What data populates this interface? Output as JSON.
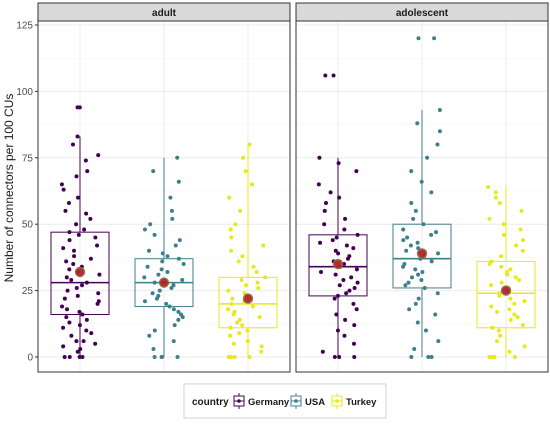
{
  "chart_data": {
    "type": "box",
    "ylabel": "Number of connectors per 100 CUs",
    "ylim": [
      0,
      125
    ],
    "yticks": [
      0,
      25,
      50,
      75,
      100,
      125
    ],
    "grid": true,
    "facets": [
      {
        "label": "adult",
        "groups": [
          {
            "country": "Germany",
            "min": 0,
            "q1": 16,
            "median": 28,
            "q3": 47,
            "max": 83,
            "mean": 32,
            "outliers": [
              94
            ],
            "points": [
              0,
              0,
              0,
              0,
              2,
              3,
              4,
              5,
              6,
              6,
              8,
              9,
              10,
              11,
              12,
              13,
              14,
              15,
              16,
              17,
              18,
              19,
              20,
              21,
              22,
              23,
              24,
              25,
              26,
              27,
              28,
              29,
              30,
              31,
              32,
              33,
              34,
              35,
              36,
              37,
              38,
              40,
              41,
              42,
              44,
              45,
              46,
              47,
              48,
              50,
              52,
              54,
              55,
              58,
              60,
              63,
              65,
              68,
              70,
              74,
              76,
              80,
              83,
              94,
              94
            ]
          },
          {
            "country": "USA",
            "min": 0,
            "q1": 19,
            "median": 28,
            "q3": 37,
            "max": 75,
            "mean": 28,
            "outliers": [],
            "points": [
              0,
              0,
              0,
              0,
              3,
              6,
              8,
              10,
              12,
              14,
              15,
              16,
              17,
              18,
              19,
              20,
              21,
              22,
              23,
              24,
              25,
              26,
              27,
              28,
              29,
              30,
              31,
              32,
              33,
              34,
              35,
              36,
              37,
              38,
              39,
              40,
              42,
              44,
              46,
              48,
              50,
              52,
              55,
              60,
              66,
              70,
              75
            ]
          },
          {
            "country": "Turkey",
            "min": 0,
            "q1": 11,
            "median": 20,
            "q3": 30,
            "max": 80,
            "mean": 22,
            "outliers": [],
            "points": [
              0,
              0,
              0,
              0,
              0,
              2,
              4,
              5,
              6,
              8,
              9,
              10,
              11,
              12,
              13,
              14,
              15,
              16,
              17,
              18,
              19,
              20,
              21,
              22,
              23,
              24,
              25,
              26,
              27,
              28,
              29,
              30,
              32,
              34,
              36,
              38,
              40,
              42,
              45,
              48,
              50,
              55,
              60,
              65,
              70,
              75,
              80
            ]
          }
        ]
      },
      {
        "label": "adolescent",
        "groups": [
          {
            "country": "Germany",
            "min": 0,
            "q1": 23,
            "median": 34,
            "q3": 46,
            "max": 75,
            "mean": 35,
            "outliers": [
              106
            ],
            "points": [
              0,
              0,
              0,
              2,
              5,
              8,
              10,
              12,
              14,
              16,
              18,
              20,
              22,
              23,
              24,
              25,
              26,
              27,
              28,
              29,
              30,
              31,
              32,
              33,
              34,
              35,
              36,
              37,
              38,
              39,
              40,
              41,
              42,
              43,
              44,
              45,
              46,
              48,
              50,
              52,
              55,
              58,
              60,
              62,
              65,
              70,
              73,
              75,
              106,
              106
            ]
          },
          {
            "country": "USA",
            "min": 0,
            "q1": 26,
            "median": 37,
            "q3": 50,
            "max": 93,
            "mean": 39,
            "outliers": [
              120
            ],
            "points": [
              0,
              0,
              0,
              3,
              6,
              10,
              13,
              16,
              18,
              20,
              22,
              24,
              26,
              27,
              28,
              29,
              30,
              31,
              32,
              33,
              34,
              35,
              36,
              37,
              38,
              39,
              40,
              41,
              42,
              43,
              44,
              45,
              46,
              47,
              48,
              50,
              52,
              55,
              58,
              62,
              66,
              70,
              75,
              80,
              85,
              88,
              93,
              120,
              120
            ]
          },
          {
            "country": "Turkey",
            "min": 0,
            "q1": 11,
            "median": 24,
            "q3": 36,
            "max": 64,
            "mean": 25,
            "outliers": [],
            "points": [
              0,
              0,
              0,
              0,
              2,
              4,
              6,
              8,
              10,
              11,
              12,
              14,
              15,
              16,
              17,
              18,
              19,
              20,
              21,
              22,
              23,
              24,
              25,
              26,
              27,
              28,
              29,
              30,
              31,
              32,
              33,
              34,
              35,
              36,
              38,
              40,
              42,
              44,
              46,
              48,
              50,
              52,
              55,
              58,
              60,
              62,
              64
            ]
          }
        ]
      }
    ],
    "legend": {
      "title": "country",
      "position": "bottom",
      "entries": [
        "Germany",
        "USA",
        "Turkey"
      ]
    },
    "colors": {
      "Germany": "#440154",
      "USA": "#3e7f8d",
      "Turkey": "#e8e81a",
      "mean_fill": "#b2222b",
      "mean_stroke": "#8b6e3c",
      "strip_bg": "#d9d9d9",
      "grid": "#ebebeb",
      "panel_border": "#333333"
    }
  }
}
